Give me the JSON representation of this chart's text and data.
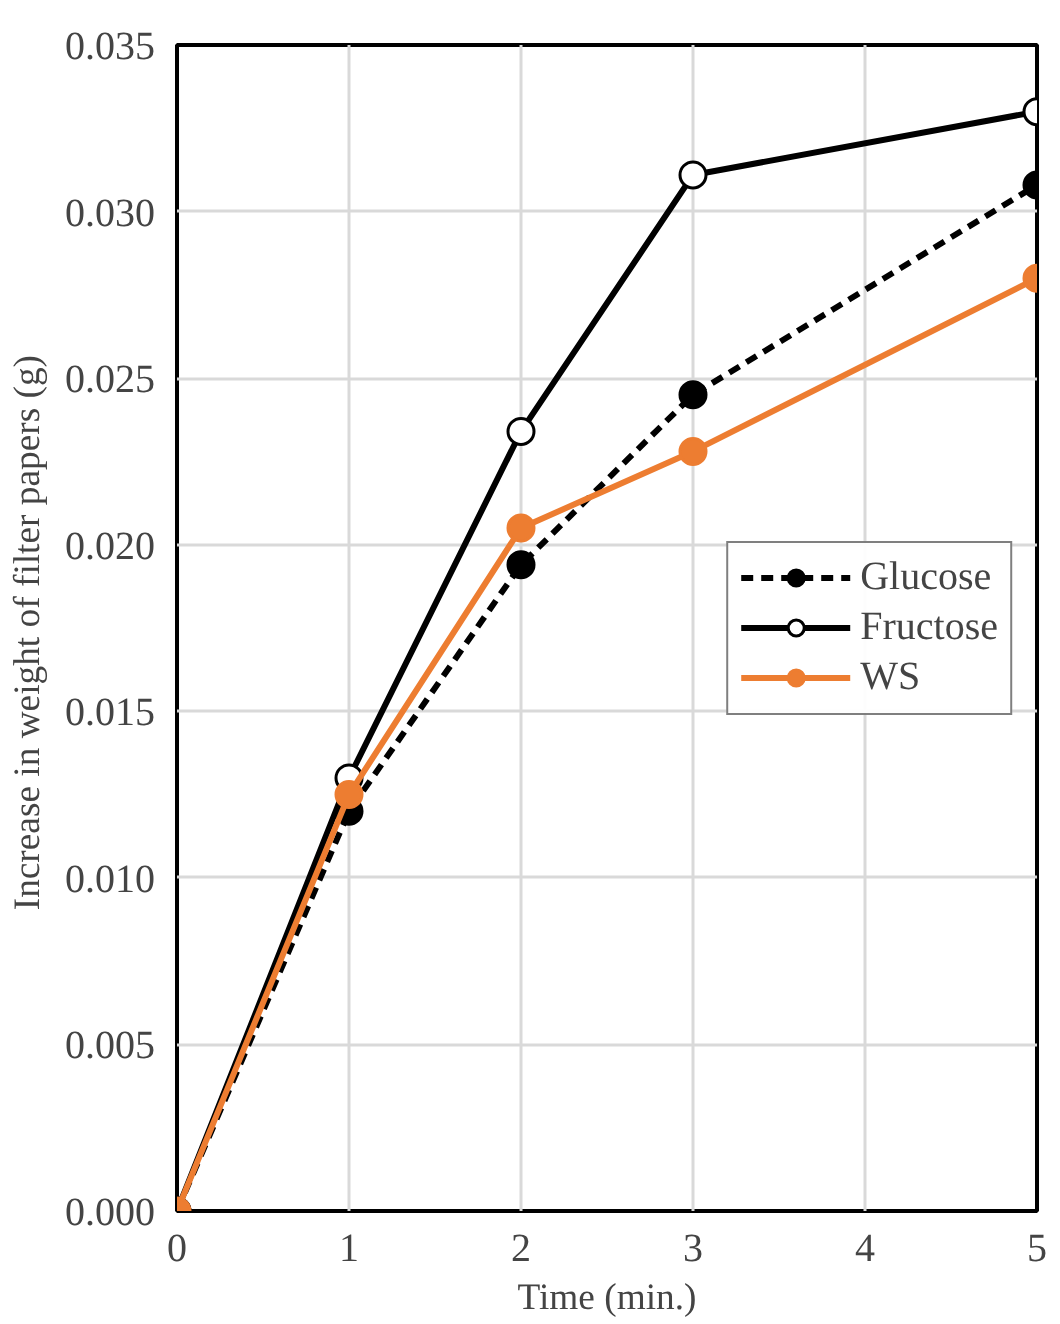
{
  "chart_data": {
    "type": "line",
    "xlabel": "Time (min.)",
    "ylabel": "Increase in weight of filter papers  (g)",
    "x": [
      0,
      1,
      2,
      3,
      5
    ],
    "series": [
      {
        "name": "Glucose",
        "color": "#000000",
        "values": [
          0,
          0.012,
          0.0194,
          0.0245,
          0.0308
        ],
        "marker": "circle",
        "line_style": "dashed"
      },
      {
        "name": "Fructose",
        "color": "#000000",
        "values": [
          0,
          0.013,
          0.0234,
          0.0311,
          0.033
        ],
        "marker": "circle_open",
        "line_style": "solid"
      },
      {
        "name": "WS",
        "color": "#ed7d31",
        "values": [
          0,
          0.0125,
          0.0205,
          0.0228,
          0.028
        ],
        "marker": "circle",
        "line_style": "solid"
      }
    ],
    "xlim": [
      0,
      5
    ],
    "xticks": [
      0,
      1,
      2,
      3,
      4,
      5
    ],
    "ylim": [
      0,
      0.035
    ],
    "yticks": [
      {
        "value": 0,
        "label": "0.000"
      },
      {
        "value": 0.005,
        "label": "0.005"
      },
      {
        "value": 0.01,
        "label": "0.010"
      },
      {
        "value": 0.015,
        "label": "0.015"
      },
      {
        "value": 0.02,
        "label": "0.020"
      },
      {
        "value": 0.025,
        "label": "0.025"
      },
      {
        "value": 0.03,
        "label": "0.030"
      },
      {
        "value": 0.035,
        "label": "0.035"
      }
    ],
    "grid": true,
    "legend": "right"
  }
}
